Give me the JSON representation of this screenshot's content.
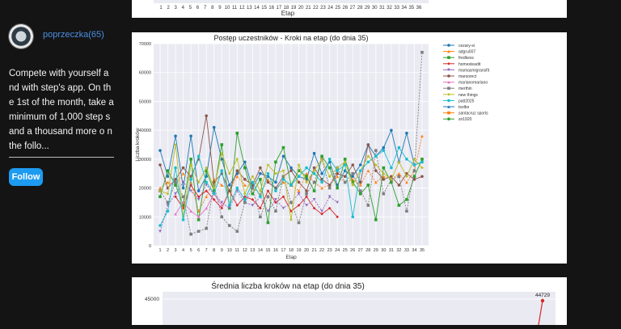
{
  "profile": {
    "username": "poprzeczka(65)",
    "description": "Compete with yourself a nd with step's app. On th e 1st of the month, take a minimum of 1,000 step s and a thousand more o n the follo...",
    "follow_label": "Follow"
  },
  "top_chart": {
    "xlabel": "Etap",
    "ticks": [
      "1",
      "2",
      "3",
      "4",
      "5",
      "6",
      "7",
      "8",
      "9",
      "10",
      "11",
      "12",
      "13",
      "14",
      "15",
      "16",
      "17",
      "18",
      "19",
      "20",
      "21",
      "22",
      "23",
      "24",
      "25",
      "26",
      "27",
      "28",
      "29",
      "30",
      "31",
      "32",
      "33",
      "34",
      "35",
      "36"
    ]
  },
  "chart_data": [
    {
      "type": "line",
      "title": "Postęp uczestników - Kroki na etap (do dnia 35)",
      "xlabel": "Etap",
      "ylabel": "Liczba kroków",
      "ylim": [
        0,
        70000
      ],
      "yticks": [
        0,
        10000,
        20000,
        30000,
        40000,
        50000,
        60000,
        70000
      ],
      "x": [
        1,
        2,
        3,
        4,
        5,
        6,
        7,
        8,
        9,
        10,
        11,
        12,
        13,
        14,
        15,
        16,
        17,
        18,
        19,
        20,
        21,
        22,
        23,
        24,
        25,
        26,
        27,
        28,
        29,
        30,
        31,
        32,
        33,
        34,
        35
      ],
      "legend_position": "right",
      "series": [
        {
          "name": "cezary-si",
          "color": "#1f77b4",
          "values": [
            33000,
            24000,
            38000,
            20000,
            38000,
            19000,
            24000,
            41000,
            30000,
            21000,
            25000,
            29000,
            20000,
            25000,
            24000,
            22000,
            31000,
            27000,
            24000,
            23000,
            32000,
            25000,
            29000,
            21000,
            26000,
            24000,
            28000,
            35000,
            31000,
            34000,
            40000,
            29000,
            39000,
            28000,
            29000
          ]
        },
        {
          "name": "adgru007",
          "color": "#ff7f0e",
          "values": [
            20000,
            22000,
            21000,
            25000,
            22000,
            12000,
            17000,
            23000,
            21000,
            19000,
            24000,
            21000,
            20000,
            18000,
            23000,
            20000,
            22000,
            21000,
            19000,
            25000,
            22000,
            20000,
            21000,
            24000,
            22000,
            23000,
            21000,
            26000,
            22000,
            24000,
            23000,
            25000,
            22000,
            26000,
            38000
          ]
        },
        {
          "name": "fredkess",
          "color": "#2ca02c",
          "values": [
            17000,
            26000,
            21000,
            14000,
            30000,
            9000,
            26000,
            19000,
            35000,
            13000,
            39000,
            27000,
            18000,
            23000,
            8000,
            29000,
            34000,
            21000,
            26000,
            24000,
            19000,
            31000,
            27000,
            20000,
            30000,
            22000,
            18000,
            21000,
            9000,
            27000,
            22000,
            14000,
            16000,
            24000,
            30000
          ]
        },
        {
          "name": "homesteadit",
          "color": "#d62728",
          "values": [
            null,
            null,
            17000,
            13000,
            21000,
            17000,
            19000,
            16000,
            13000,
            19000,
            14000,
            17000,
            16000,
            13000,
            19000,
            15000,
            17000,
            12000,
            14000,
            17000,
            13000,
            11000,
            13000,
            10000,
            null,
            null,
            null,
            null,
            null,
            null,
            null,
            null,
            null,
            null,
            null
          ]
        },
        {
          "name": "mamasmigransfit",
          "color": "#9467bd",
          "values": [
            5000,
            14000,
            18000,
            22000,
            19000,
            16000,
            21000,
            18000,
            15000,
            13000,
            19000,
            15000,
            14000,
            17000,
            12000,
            16000,
            13000,
            15000,
            18000,
            14000,
            16000,
            12000,
            17000,
            15000,
            null,
            null,
            null,
            null,
            null,
            null,
            null,
            null,
            null,
            null,
            null
          ]
        },
        {
          "name": "marsorect",
          "color": "#8c564b",
          "values": [
            28000,
            20000,
            23000,
            27000,
            24000,
            30000,
            45000,
            22000,
            25000,
            19000,
            26000,
            23000,
            21000,
            27000,
            22000,
            20000,
            24000,
            26000,
            22000,
            19000,
            27000,
            23000,
            21000,
            25000,
            24000,
            28000,
            22000,
            35000,
            26000,
            23000,
            24000,
            21000,
            25000,
            23000,
            24000
          ]
        },
        {
          "name": "marianomariano",
          "color": "#e377c2",
          "values": [
            null,
            null,
            11000,
            15000,
            12000,
            10000,
            13000,
            18000,
            14000,
            null,
            null,
            null,
            null,
            null,
            null,
            null,
            null,
            null,
            null,
            null,
            null,
            null,
            null,
            null,
            null,
            null,
            null,
            null,
            null,
            null,
            null,
            null,
            null,
            null,
            null
          ]
        },
        {
          "name": "merthin",
          "color": "#7f7f7f",
          "values": [
            19000,
            15000,
            22000,
            17000,
            4000,
            5000,
            6000,
            21000,
            10000,
            7000,
            5000,
            15000,
            20000,
            10000,
            17000,
            12000,
            24000,
            15000,
            8000,
            18000,
            22000,
            30000,
            20000,
            27000,
            22000,
            25000,
            19000,
            14000,
            33000,
            18000,
            23000,
            24000,
            12000,
            26000,
            67000
          ]
        },
        {
          "name": "new things",
          "color": "#bcbd22",
          "values": [
            19000,
            18000,
            35000,
            10000,
            28000,
            22000,
            27000,
            20000,
            32000,
            25000,
            30000,
            18000,
            24000,
            19000,
            28000,
            25000,
            26000,
            9000,
            28000,
            22000,
            26000,
            30000,
            24000,
            27000,
            29000,
            21000,
            26000,
            31000,
            28000,
            25000,
            23000,
            29000,
            24000,
            30000,
            27000
          ]
        },
        {
          "name": "patt2025",
          "color": "#17becf",
          "values": [
            7000,
            12000,
            27000,
            9000,
            23000,
            31000,
            22000,
            18000,
            26000,
            14000,
            20000,
            16000,
            22000,
            17000,
            25000,
            19000,
            23000,
            21000,
            24000,
            27000,
            25000,
            22000,
            30000,
            26000,
            28000,
            10000,
            26000,
            29000,
            31000,
            33000,
            27000,
            34000,
            30000,
            28000,
            29000
          ]
        },
        {
          "name": "tsolbo",
          "color": "#1f77b4",
          "values": [
            null,
            null,
            null,
            null,
            null,
            null,
            null,
            null,
            null,
            null,
            null,
            null,
            null,
            null,
            null,
            null,
            null,
            null,
            null,
            null,
            null,
            null,
            null,
            null,
            null,
            null,
            null,
            null,
            null,
            null,
            null,
            null,
            null,
            null,
            null
          ]
        },
        {
          "name": "santacruz sports",
          "color": "#ff7f0e",
          "values": [
            null,
            null,
            null,
            null,
            null,
            null,
            null,
            null,
            null,
            null,
            null,
            null,
            null,
            null,
            null,
            null,
            null,
            null,
            null,
            null,
            null,
            null,
            null,
            null,
            null,
            null,
            null,
            null,
            null,
            null,
            null,
            null,
            null,
            null,
            null
          ]
        },
        {
          "name": "sir1920",
          "color": "#2ca02c",
          "values": [
            null,
            null,
            null,
            null,
            null,
            null,
            null,
            null,
            null,
            null,
            null,
            null,
            null,
            null,
            null,
            null,
            null,
            null,
            null,
            null,
            null,
            null,
            null,
            null,
            null,
            null,
            null,
            null,
            null,
            null,
            null,
            null,
            null,
            null,
            null
          ]
        }
      ]
    },
    {
      "type": "line",
      "title": "Średnia liczba kroków na etap (do dnia 35)",
      "ytick_visible": "45000",
      "annotation": "44729",
      "values_visible": [
        44729
      ]
    }
  ]
}
